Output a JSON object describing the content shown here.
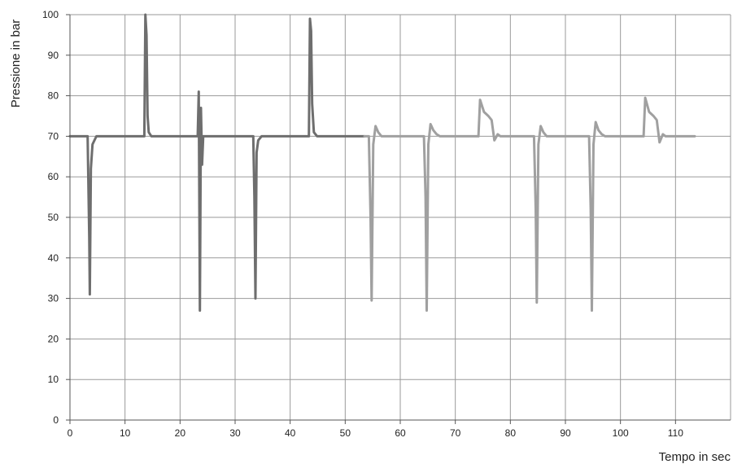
{
  "chart_data": {
    "type": "line",
    "title": "",
    "xlabel": "Tempo in sec",
    "ylabel": "Pressione in bar",
    "xlim": [
      0,
      120
    ],
    "ylim": [
      0,
      100
    ],
    "xticks": [
      0,
      10,
      20,
      30,
      40,
      50,
      60,
      70,
      80,
      90,
      100,
      110
    ],
    "yticks": [
      0,
      10,
      20,
      30,
      40,
      50,
      60,
      70,
      80,
      90,
      100
    ],
    "grid": true,
    "legend": "none",
    "series": [
      {
        "color": "#6e6e6e",
        "x": [
          0,
          3.2,
          3.5,
          3.6,
          3.8,
          4.1,
          4.8,
          6,
          13.5,
          13.7,
          13.9,
          14.1,
          14.3,
          14.8,
          15.5,
          23.2,
          23.4,
          23.6,
          23.8,
          24,
          24.2,
          24.6,
          33.3,
          33.5,
          33.7,
          33.9,
          34.2,
          34.8,
          35.5,
          43.4,
          43.6,
          43.8,
          44,
          44.3,
          44.9,
          45.6,
          53.5
        ],
        "y": [
          70,
          70,
          45,
          31,
          62,
          68,
          70,
          70,
          70,
          100,
          95,
          75,
          71,
          70,
          70,
          70,
          81,
          27,
          77,
          63,
          70,
          70,
          70,
          55,
          30,
          66,
          69,
          70,
          70,
          70,
          99,
          96,
          78,
          71,
          70,
          70,
          70
        ]
      },
      {
        "color": "#a0a0a0",
        "x": [
          53.5,
          54.3,
          54.6,
          54.8,
          55.1,
          55.5,
          56,
          56.6,
          57.2,
          64.3,
          64.6,
          64.8,
          65.1,
          65.5,
          66,
          66.6,
          67.2,
          74.2,
          74.5,
          75.2,
          76,
          76.6,
          77.1,
          77.7,
          78.2,
          84.3,
          84.6,
          84.8,
          85.1,
          85.5,
          86,
          86.6,
          87.2,
          94.3,
          94.6,
          94.8,
          95.1,
          95.5,
          96,
          96.6,
          97.2,
          104.2,
          104.5,
          105.2,
          106,
          106.6,
          107.1,
          107.7,
          108.2,
          113.5
        ],
        "y": [
          70,
          70,
          50,
          29.5,
          68,
          72.5,
          71,
          70,
          70,
          70,
          55,
          27,
          68,
          73,
          71.5,
          70.5,
          70,
          70,
          79,
          76,
          75,
          74,
          69,
          70.5,
          70,
          70,
          52,
          29,
          68,
          72.5,
          71,
          70,
          70,
          70,
          52,
          27,
          68,
          73.5,
          71.5,
          70.5,
          70,
          70,
          79.5,
          76,
          75,
          74,
          68.5,
          70.5,
          70,
          70
        ]
      }
    ]
  }
}
